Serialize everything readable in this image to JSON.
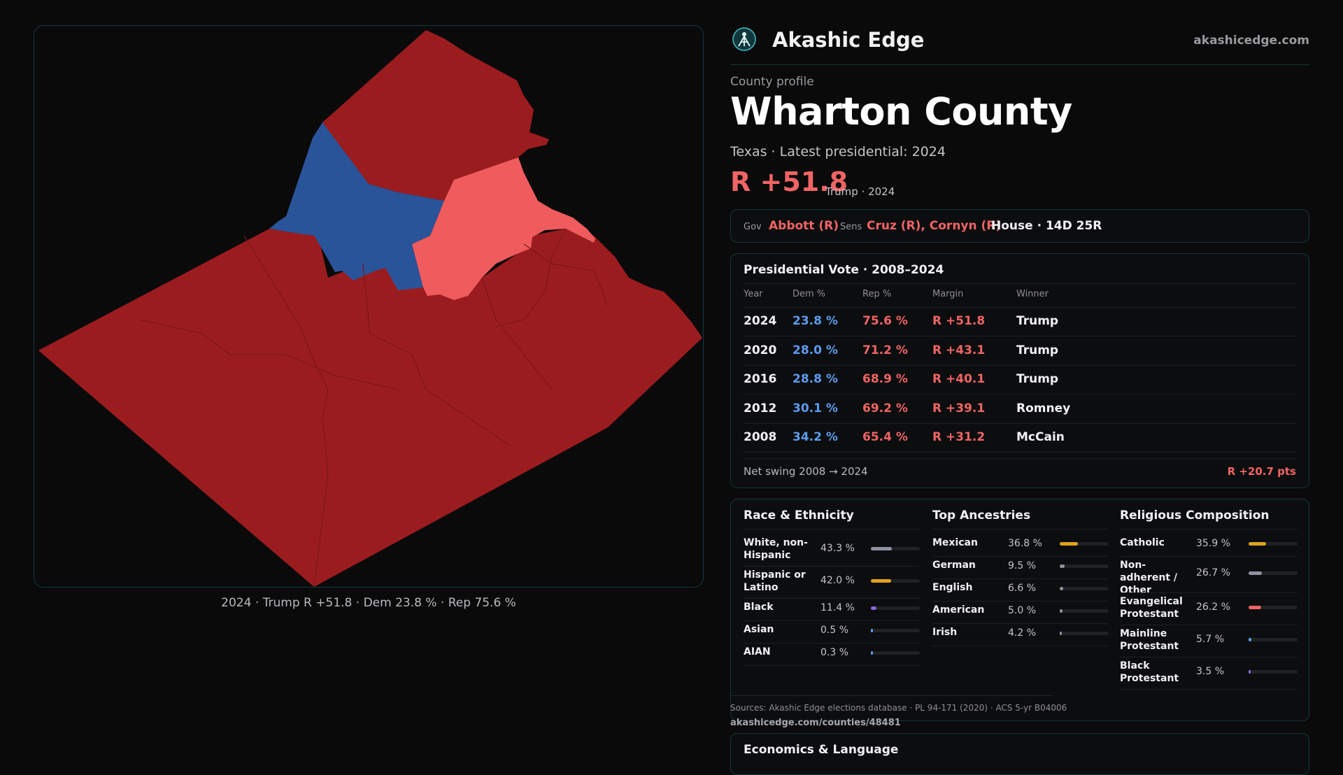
{
  "brand": {
    "name": "Akashic Edge",
    "url": "akashicedge.com"
  },
  "header": {
    "kicker": "County profile",
    "title": "Wharton County",
    "subtitle": "Texas · Latest presidential: 2024",
    "margin": "R +51.8",
    "margin_note": "Trump · 2024"
  },
  "officials": {
    "gov_label": "Gov",
    "gov": "Abbott (R)",
    "sens_label": "Sens",
    "sens": "Cruz (R), Cornyn (R)",
    "house": "House · 14D 25R"
  },
  "map": {
    "caption": "2024 · Trump R +51.8 · Dem 23.8 % · Rep 75.6 %",
    "colors": {
      "strong_rep": "#9b1c1f",
      "lean_rep": "#f05b5d",
      "dem": "#2a5499"
    }
  },
  "presidential": {
    "title": "Presidential Vote · 2008–2024",
    "headers": [
      "Year",
      "Dem %",
      "Rep %",
      "Margin",
      "Winner"
    ],
    "rows": [
      [
        "2024",
        "23.8 %",
        "75.6 %",
        "R +51.8",
        "Trump"
      ],
      [
        "2020",
        "28.0 %",
        "71.2 %",
        "R +43.1",
        "Trump"
      ],
      [
        "2016",
        "28.8 %",
        "68.9 %",
        "R +40.1",
        "Trump"
      ],
      [
        "2012",
        "30.1 %",
        "69.2 %",
        "R +39.1",
        "Romney"
      ],
      [
        "2008",
        "34.2 %",
        "65.4 %",
        "R +31.2",
        "McCain"
      ]
    ],
    "swing_label": "Net swing 2008 → 2024",
    "swing_value": "R +20.7 pts"
  },
  "race": {
    "title": "Race & Ethnicity",
    "rows": [
      {
        "label": "White, non-Hispanic",
        "value": "43.3 %",
        "share": 0.433,
        "color": "#8e93a3"
      },
      {
        "label": "Hispanic or Latino",
        "value": "42.0 %",
        "share": 0.42,
        "color": "#e0a21b"
      },
      {
        "label": "Black",
        "value": "11.4 %",
        "share": 0.114,
        "color": "#8a66e0"
      },
      {
        "label": "Asian",
        "value": "0.5 %",
        "share": 0.005,
        "color": "#5b9cf0"
      },
      {
        "label": "AIAN",
        "value": "0.3 %",
        "share": 0.003,
        "color": "#5b9cf0"
      }
    ]
  },
  "ancestry": {
    "title": "Top Ancestries",
    "rows": [
      {
        "label": "Mexican",
        "value": "36.8 %",
        "share": 0.368,
        "color": "#e0a21b"
      },
      {
        "label": "German",
        "value": "9.5 %",
        "share": 0.095,
        "color": "#8e93a3"
      },
      {
        "label": "English",
        "value": "6.6 %",
        "share": 0.066,
        "color": "#8e93a3"
      },
      {
        "label": "American",
        "value": "5.0 %",
        "share": 0.05,
        "color": "#8e93a3"
      },
      {
        "label": "Irish",
        "value": "4.2 %",
        "share": 0.042,
        "color": "#8e93a3"
      }
    ]
  },
  "religion": {
    "title": "Religious Composition",
    "rows": [
      {
        "label": "Catholic",
        "value": "35.9 %",
        "share": 0.359,
        "color": "#e0a21b"
      },
      {
        "label": "Non-adherent / Other",
        "value": "26.7 %",
        "share": 0.267,
        "color": "#8e93a3"
      },
      {
        "label": "Evangelical Protestant",
        "value": "26.2 %",
        "share": 0.262,
        "color": "#f06464"
      },
      {
        "label": "Mainline Protestant",
        "value": "5.7 %",
        "share": 0.057,
        "color": "#5b9cf0"
      },
      {
        "label": "Black Protestant",
        "value": "3.5 %",
        "share": 0.035,
        "color": "#8a66e0"
      }
    ]
  },
  "sources": {
    "text": "Sources: Akashic Edge elections database · PL 94-171 (2020) · ACS 5-yr B04006",
    "url": "akashicedge.com/counties/48481"
  },
  "economics": {
    "title": "Economics & Language"
  }
}
